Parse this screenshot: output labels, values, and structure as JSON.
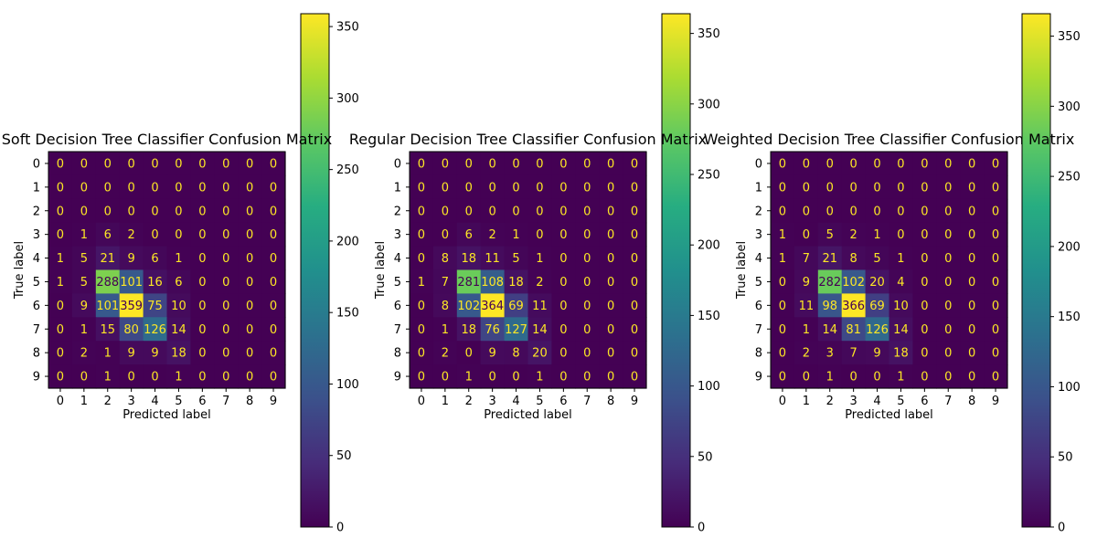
{
  "chart_data": [
    {
      "type": "heatmap",
      "title": "Soft Decision Tree Classifier Confusion Matrix",
      "xlabel": "Predicted label",
      "ylabel": "True label",
      "x_ticks": [
        "0",
        "1",
        "2",
        "3",
        "4",
        "5",
        "6",
        "7",
        "8",
        "9"
      ],
      "y_ticks": [
        "0",
        "1",
        "2",
        "3",
        "4",
        "5",
        "6",
        "7",
        "8",
        "9"
      ],
      "colormap": "viridis",
      "colorbar": {
        "range": [
          0,
          359
        ],
        "ticks": [
          0,
          50,
          100,
          150,
          200,
          250,
          300,
          350
        ]
      },
      "matrix": [
        [
          0,
          0,
          0,
          0,
          0,
          0,
          0,
          0,
          0,
          0
        ],
        [
          0,
          0,
          0,
          0,
          0,
          0,
          0,
          0,
          0,
          0
        ],
        [
          0,
          0,
          0,
          0,
          0,
          0,
          0,
          0,
          0,
          0
        ],
        [
          0,
          1,
          6,
          2,
          0,
          0,
          0,
          0,
          0,
          0
        ],
        [
          1,
          5,
          21,
          9,
          6,
          1,
          0,
          0,
          0,
          0
        ],
        [
          1,
          5,
          288,
          101,
          16,
          6,
          0,
          0,
          0,
          0
        ],
        [
          0,
          9,
          101,
          359,
          75,
          10,
          0,
          0,
          0,
          0
        ],
        [
          0,
          1,
          15,
          80,
          126,
          14,
          0,
          0,
          0,
          0
        ],
        [
          0,
          2,
          1,
          9,
          9,
          18,
          0,
          0,
          0,
          0
        ],
        [
          0,
          0,
          1,
          0,
          0,
          1,
          0,
          0,
          0,
          0
        ]
      ]
    },
    {
      "type": "heatmap",
      "title": "Regular Decision Tree Classifier Confusion Matrix",
      "xlabel": "Predicted label",
      "ylabel": "True label",
      "x_ticks": [
        "0",
        "1",
        "2",
        "3",
        "4",
        "5",
        "6",
        "7",
        "8",
        "9"
      ],
      "y_ticks": [
        "0",
        "1",
        "2",
        "3",
        "4",
        "5",
        "6",
        "7",
        "8",
        "9"
      ],
      "colormap": "viridis",
      "colorbar": {
        "range": [
          0,
          364
        ],
        "ticks": [
          0,
          50,
          100,
          150,
          200,
          250,
          300,
          350
        ]
      },
      "matrix": [
        [
          0,
          0,
          0,
          0,
          0,
          0,
          0,
          0,
          0,
          0
        ],
        [
          0,
          0,
          0,
          0,
          0,
          0,
          0,
          0,
          0,
          0
        ],
        [
          0,
          0,
          0,
          0,
          0,
          0,
          0,
          0,
          0,
          0
        ],
        [
          0,
          0,
          6,
          2,
          1,
          0,
          0,
          0,
          0,
          0
        ],
        [
          0,
          8,
          18,
          11,
          5,
          1,
          0,
          0,
          0,
          0
        ],
        [
          1,
          7,
          281,
          108,
          18,
          2,
          0,
          0,
          0,
          0
        ],
        [
          0,
          8,
          102,
          364,
          69,
          11,
          0,
          0,
          0,
          0
        ],
        [
          0,
          1,
          18,
          76,
          127,
          14,
          0,
          0,
          0,
          0
        ],
        [
          0,
          2,
          0,
          9,
          8,
          20,
          0,
          0,
          0,
          0
        ],
        [
          0,
          0,
          1,
          0,
          0,
          1,
          0,
          0,
          0,
          0
        ]
      ]
    },
    {
      "type": "heatmap",
      "title": "Weighted Decision Tree Classifier Confusion Matrix",
      "xlabel": "Predicted label",
      "ylabel": "True label",
      "x_ticks": [
        "0",
        "1",
        "2",
        "3",
        "4",
        "5",
        "6",
        "7",
        "8",
        "9"
      ],
      "y_ticks": [
        "0",
        "1",
        "2",
        "3",
        "4",
        "5",
        "6",
        "7",
        "8",
        "9"
      ],
      "colormap": "viridis",
      "colorbar": {
        "range": [
          0,
          366
        ],
        "ticks": [
          0,
          50,
          100,
          150,
          200,
          250,
          300,
          350
        ]
      },
      "matrix": [
        [
          0,
          0,
          0,
          0,
          0,
          0,
          0,
          0,
          0,
          0
        ],
        [
          0,
          0,
          0,
          0,
          0,
          0,
          0,
          0,
          0,
          0
        ],
        [
          0,
          0,
          0,
          0,
          0,
          0,
          0,
          0,
          0,
          0
        ],
        [
          1,
          0,
          5,
          2,
          1,
          0,
          0,
          0,
          0,
          0
        ],
        [
          1,
          7,
          21,
          8,
          5,
          1,
          0,
          0,
          0,
          0
        ],
        [
          0,
          9,
          282,
          102,
          20,
          4,
          0,
          0,
          0,
          0
        ],
        [
          0,
          11,
          98,
          366,
          69,
          10,
          0,
          0,
          0,
          0
        ],
        [
          0,
          1,
          14,
          81,
          126,
          14,
          0,
          0,
          0,
          0
        ],
        [
          0,
          2,
          3,
          7,
          9,
          18,
          0,
          0,
          0,
          0
        ],
        [
          0,
          0,
          1,
          0,
          0,
          1,
          0,
          0,
          0,
          0
        ]
      ]
    }
  ]
}
